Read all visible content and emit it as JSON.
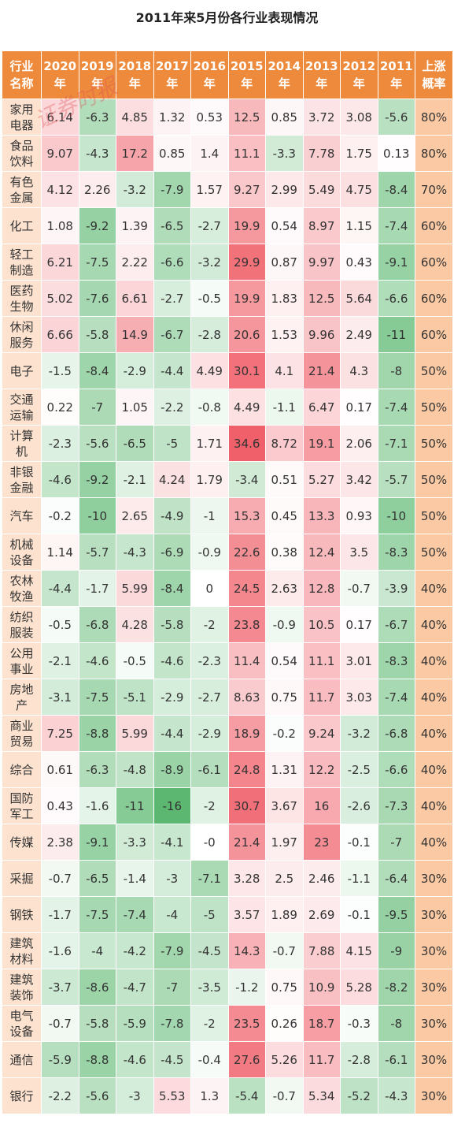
{
  "title": "2011年来5月份各行业表现情况",
  "watermark": "证券时报",
  "colors": {
    "header_bg": "#ee8a3c",
    "name_bg": "#fde3cf",
    "prob_bg": "#fbc9a3",
    "positive": "#f0606a",
    "negative": "#5cb870"
  },
  "chart_data": {
    "type": "heatmap",
    "title": "2011年来5月份各行业表现情况",
    "columns": [
      "2020年",
      "2019年",
      "2018年",
      "2017年",
      "2016年",
      "2015年",
      "2014年",
      "2013年",
      "2012年",
      "2011年"
    ],
    "first_header": "行业名称",
    "last_header": "上涨概率",
    "rows": [
      {
        "name": "家用电器",
        "values": [
          "6.14",
          "-6.3",
          "4.85",
          "1.32",
          "0.53",
          "12.5",
          "0.85",
          "3.72",
          "3.08",
          "-5.6"
        ],
        "prob": "80%"
      },
      {
        "name": "食品饮料",
        "values": [
          "9.07",
          "-4.3",
          "17.2",
          "0.85",
          "1.4",
          "11.1",
          "-3.3",
          "7.78",
          "1.75",
          "0.13"
        ],
        "prob": "80%"
      },
      {
        "name": "有色金属",
        "values": [
          "4.12",
          "2.26",
          "-3.2",
          "-7.9",
          "1.57",
          "9.27",
          "2.99",
          "5.49",
          "4.75",
          "-8.4"
        ],
        "prob": "70%"
      },
      {
        "name": "化工",
        "values": [
          "1.08",
          "-9.2",
          "1.39",
          "-6.5",
          "-2.7",
          "19.9",
          "0.54",
          "8.97",
          "1.15",
          "-7.4"
        ],
        "prob": "60%"
      },
      {
        "name": "轻工制造",
        "values": [
          "6.21",
          "-7.5",
          "2.22",
          "-6.6",
          "-3.2",
          "29.9",
          "0.87",
          "9.97",
          "0.43",
          "-9.1"
        ],
        "prob": "60%"
      },
      {
        "name": "医药生物",
        "values": [
          "5.02",
          "-7.6",
          "6.61",
          "-2.7",
          "-0.5",
          "19.9",
          "1.83",
          "12.5",
          "5.64",
          "-6.6"
        ],
        "prob": "60%"
      },
      {
        "name": "休闲服务",
        "values": [
          "6.66",
          "-5.8",
          "14.9",
          "-6.7",
          "-2.8",
          "20.6",
          "1.53",
          "9.96",
          "2.49",
          "-11"
        ],
        "prob": "60%"
      },
      {
        "name": "电子",
        "values": [
          "-1.5",
          "-8.4",
          "-2.9",
          "-4.4",
          "4.49",
          "30.1",
          "4.1",
          "21.4",
          "4.3",
          "-8"
        ],
        "prob": "50%"
      },
      {
        "name": "交通运输",
        "values": [
          "0.22",
          "-7",
          "1.05",
          "-2.2",
          "-0.8",
          "4.49",
          "-1.1",
          "6.47",
          "0.17",
          "-7.4"
        ],
        "prob": "50%"
      },
      {
        "name": "计算机",
        "values": [
          "-2.3",
          "-5.6",
          "-6.5",
          "-5",
          "1.71",
          "34.6",
          "8.72",
          "19.1",
          "2.06",
          "-7.1"
        ],
        "prob": "50%"
      },
      {
        "name": "非银金融",
        "values": [
          "-4.6",
          "-9.2",
          "-2.1",
          "4.24",
          "1.79",
          "-3.4",
          "0.51",
          "5.27",
          "3.42",
          "-5.7"
        ],
        "prob": "50%"
      },
      {
        "name": "汽车",
        "values": [
          "-0.2",
          "-10",
          "2.65",
          "-4.9",
          "-1",
          "15.3",
          "0.45",
          "13.3",
          "0.93",
          "-10"
        ],
        "prob": "50%"
      },
      {
        "name": "机械设备",
        "values": [
          "1.14",
          "-5.7",
          "-4.3",
          "-6.9",
          "-0.9",
          "22.6",
          "0.38",
          "12.4",
          "3.5",
          "-8.3"
        ],
        "prob": "50%"
      },
      {
        "name": "农林牧渔",
        "values": [
          "-4.4",
          "-1.7",
          "5.99",
          "-8.4",
          "0",
          "24.5",
          "2.63",
          "12.8",
          "-0.7",
          "-3.9"
        ],
        "prob": "40%"
      },
      {
        "name": "纺织服装",
        "values": [
          "-0.5",
          "-6.8",
          "4.28",
          "-5.8",
          "-2",
          "23.8",
          "-0.9",
          "10.5",
          "0.17",
          "-6.7"
        ],
        "prob": "40%"
      },
      {
        "name": "公用事业",
        "values": [
          "-2.1",
          "-4.6",
          "-0.5",
          "-4.6",
          "-2.3",
          "11.4",
          "0.54",
          "11.1",
          "3.01",
          "-8.3"
        ],
        "prob": "40%"
      },
      {
        "name": "房地产",
        "values": [
          "-3.1",
          "-7.5",
          "-5.1",
          "-2.9",
          "-2.7",
          "8.63",
          "0.75",
          "11.7",
          "3.03",
          "-7.4"
        ],
        "prob": "40%"
      },
      {
        "name": "商业贸易",
        "values": [
          "7.25",
          "-8.8",
          "5.99",
          "-4.4",
          "-2.9",
          "18.9",
          "-0.2",
          "9.24",
          "-3.2",
          "-6.8"
        ],
        "prob": "40%"
      },
      {
        "name": "综合",
        "values": [
          "0.61",
          "-6.3",
          "-4.8",
          "-8.9",
          "-6.1",
          "24.8",
          "1.31",
          "12.2",
          "-2.5",
          "-6.6"
        ],
        "prob": "40%"
      },
      {
        "name": "国防军工",
        "values": [
          "0.43",
          "-1.6",
          "-11",
          "-16",
          "-2",
          "30.7",
          "3.67",
          "16",
          "-2.6",
          "-7.3"
        ],
        "prob": "40%"
      },
      {
        "name": "传媒",
        "values": [
          "2.38",
          "-9.1",
          "-3.3",
          "-4.1",
          "-0",
          "21.4",
          "1.97",
          "23",
          "-0.1",
          "-7"
        ],
        "prob": "40%"
      },
      {
        "name": "采掘",
        "values": [
          "-0.7",
          "-6.5",
          "-1.4",
          "-3",
          "-7.1",
          "3.28",
          "2.5",
          "2.46",
          "-1.1",
          "-6.4"
        ],
        "prob": "30%"
      },
      {
        "name": "钢铁",
        "values": [
          "-1.7",
          "-7.5",
          "-7.4",
          "-4",
          "-5",
          "3.57",
          "1.89",
          "2.69",
          "-0.1",
          "-9.5"
        ],
        "prob": "30%"
      },
      {
        "name": "建筑材料",
        "values": [
          "-1.6",
          "-4",
          "-4.2",
          "-7.9",
          "-4.5",
          "14.3",
          "-0.7",
          "7.88",
          "4.15",
          "-9"
        ],
        "prob": "30%"
      },
      {
        "name": "建筑装饰",
        "values": [
          "-3.7",
          "-8.6",
          "-4.7",
          "-7",
          "-3.5",
          "-1.2",
          "0.75",
          "10.9",
          "5.28",
          "-8.2"
        ],
        "prob": "30%"
      },
      {
        "name": "电气设备",
        "values": [
          "-0.7",
          "-5.8",
          "-5.9",
          "-7.8",
          "-2",
          "23.5",
          "0.26",
          "18.7",
          "-0.3",
          "-8"
        ],
        "prob": "30%"
      },
      {
        "name": "通信",
        "values": [
          "-5.9",
          "-8.8",
          "-4.6",
          "-4.5",
          "-0.4",
          "27.6",
          "5.26",
          "11.7",
          "-2.8",
          "-6.1"
        ],
        "prob": "30%"
      },
      {
        "name": "银行",
        "values": [
          "-2.2",
          "-5.6",
          "-3",
          "5.53",
          "1.3",
          "-5.4",
          "-0.7",
          "5.34",
          "-5.2",
          "-4.3"
        ],
        "prob": "30%"
      }
    ]
  }
}
